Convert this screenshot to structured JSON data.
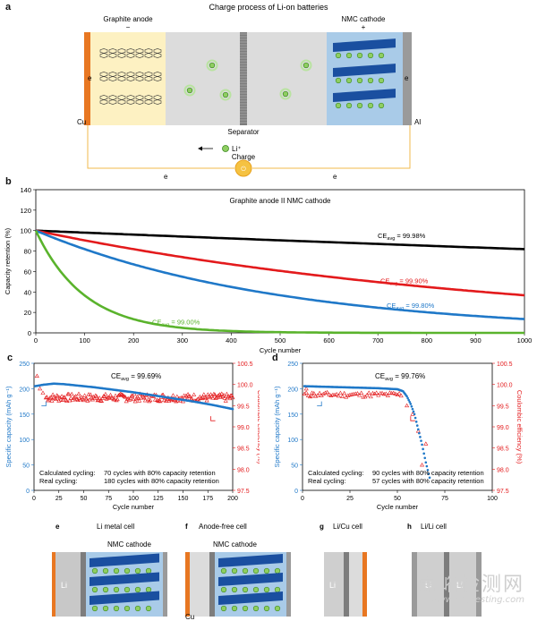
{
  "panel_a": {
    "letter": "a",
    "title": "Charge process of Li-on batteries",
    "anode_label": "Graphite anode",
    "anode_sign": "−",
    "cathode_label": "NMC cathode",
    "cathode_sign": "+",
    "separator_label": "Separator",
    "li_label": "Li⁺",
    "charge_label": "Charge",
    "cu_label": "Cu",
    "al_label": "Al",
    "e_label": "e"
  },
  "chart_data": [
    {
      "id": "b",
      "type": "line",
      "title": "Graphite anode II NMC cathode",
      "xlabel": "Cycle number",
      "ylabel": "Capacity retention (%)",
      "xlim": [
        0,
        1000
      ],
      "ylim": [
        0,
        140
      ],
      "xticks": [
        0,
        100,
        200,
        300,
        400,
        500,
        600,
        700,
        800,
        900,
        1000
      ],
      "yticks": [
        0,
        20,
        40,
        60,
        80,
        100,
        120,
        140
      ],
      "series": [
        {
          "name": "CE avg = 99.98%",
          "ce": 0.9998,
          "color": "#000000"
        },
        {
          "name": "CE avg = 99.90%",
          "ce": 0.999,
          "color": "#e31a1c"
        },
        {
          "name": "CE avg = 99.80%",
          "ce": 0.998,
          "color": "#1f78c8"
        },
        {
          "name": "CE avg = 99.00%",
          "ce": 0.99,
          "color": "#5ab32c"
        }
      ],
      "labels": [
        {
          "pre": "CE",
          "sub": "avg",
          "post": " = 99.98%",
          "color": "#000000"
        },
        {
          "pre": "CE",
          "sub": "avg",
          "post": " = 99.90%",
          "color": "#e31a1c"
        },
        {
          "pre": "CE",
          "sub": "avg",
          "post": " = 99.80%",
          "color": "#1f78c8"
        },
        {
          "pre": "CE",
          "sub": "avg",
          "post": " = 99.00%",
          "color": "#5ab32c"
        }
      ]
    },
    {
      "id": "c",
      "type": "scatter",
      "title_pre": "CE",
      "title_sub": "avg",
      "title_post": " = 99.69%",
      "xlabel": "Cycle number",
      "ylabel_left": "Specific capacity (mAh g⁻¹)",
      "ylabel_right": "Coulombic efficiency (%)",
      "xlim": [
        0,
        200
      ],
      "ylim_left": [
        0,
        250
      ],
      "ylim_right": [
        97.5,
        100.5
      ],
      "xticks": [
        0,
        25,
        50,
        75,
        100,
        125,
        150,
        175,
        200
      ],
      "yticks_left": [
        0,
        50,
        100,
        150,
        200,
        250
      ],
      "yticks_right": [
        "97.5",
        "98.0",
        "98.5",
        "99.0",
        "99.5",
        "100.0",
        "100.5"
      ],
      "capacity": {
        "x": [
          1,
          10,
          20,
          30,
          40,
          60,
          80,
          100,
          120,
          140,
          160,
          180,
          200
        ],
        "y": [
          205,
          208,
          210,
          209,
          207,
          203,
          198,
          193,
          187,
          181,
          175,
          168,
          160
        ]
      },
      "ce": {
        "first": [
          [
            3,
            100.2
          ],
          [
            6,
            99.9
          ],
          [
            9,
            99.8
          ]
        ],
        "mean": 99.69
      },
      "note_lines": [
        {
          "label": "Calculated cycling:",
          "text": "70 cycles with 80% capacity retention"
        },
        {
          "label": "Real cycling:",
          "text": "180 cycles with 80% capacity retention"
        }
      ]
    },
    {
      "id": "d",
      "type": "scatter",
      "title_pre": "CE",
      "title_sub": "avg",
      "title_post": " = 99.76%",
      "xlabel": "Cycle number",
      "ylabel_left": "Specific capacity (mAh g⁻¹)",
      "ylabel_right": "Coulombic efficiency (%)",
      "xlim": [
        0,
        100
      ],
      "ylim_left": [
        0,
        250
      ],
      "ylim_right": [
        97.5,
        100.5
      ],
      "xticks": [
        0,
        25,
        50,
        75,
        100
      ],
      "yticks_left": [
        0,
        50,
        100,
        150,
        200,
        250
      ],
      "yticks_right": [
        "97.5",
        "98.0",
        "98.5",
        "99.0",
        "99.5",
        "100.0",
        "100.5"
      ],
      "capacity": {
        "x": [
          1,
          10,
          20,
          30,
          40,
          50,
          53,
          55,
          57,
          59,
          61,
          63,
          65,
          67
        ],
        "y": [
          205,
          204,
          203,
          202,
          201,
          199,
          195,
          185,
          170,
          150,
          120,
          90,
          55,
          25
        ]
      },
      "ce": {
        "points": [
          [
            2,
            99.9
          ],
          [
            5,
            99.8
          ],
          [
            55,
            99.5
          ],
          [
            58,
            99.3
          ],
          [
            61,
            98.9
          ],
          [
            63,
            98.1
          ],
          [
            65,
            98.6
          ]
        ],
        "mean": 99.76
      },
      "note_lines": [
        {
          "label": "Calculated cycling:",
          "text": "90 cycles with 80% capacity retention"
        },
        {
          "label": "Real cycling:",
          "text": "57 cycles with 80% capacity retention"
        }
      ]
    }
  ],
  "panel_e": {
    "letter": "e",
    "title": "Li metal cell",
    "subtitle": "NMC cathode",
    "li": "Li"
  },
  "panel_f": {
    "letter": "f",
    "title": "Anode-free cell",
    "subtitle": "NMC cathode",
    "cu": "Cu"
  },
  "panel_g": {
    "letter": "g",
    "title": "Li/Cu cell",
    "li": "Li"
  },
  "panel_h": {
    "letter": "h",
    "title": "Li/Li cell",
    "li1": "Li",
    "li2": "Li"
  },
  "watermark": {
    "cn": "嘉峪检测网",
    "en": "www.anytesting.com"
  },
  "colors": {
    "capacity": "#1f78c8",
    "ce": "#e31a1c",
    "cu": "#e87722",
    "anode_bg": "#fdf1c2",
    "cathode_bg": "#a9cbe8",
    "electrolyte": "#dcdcdc",
    "nmc": "#1a4fa0"
  }
}
